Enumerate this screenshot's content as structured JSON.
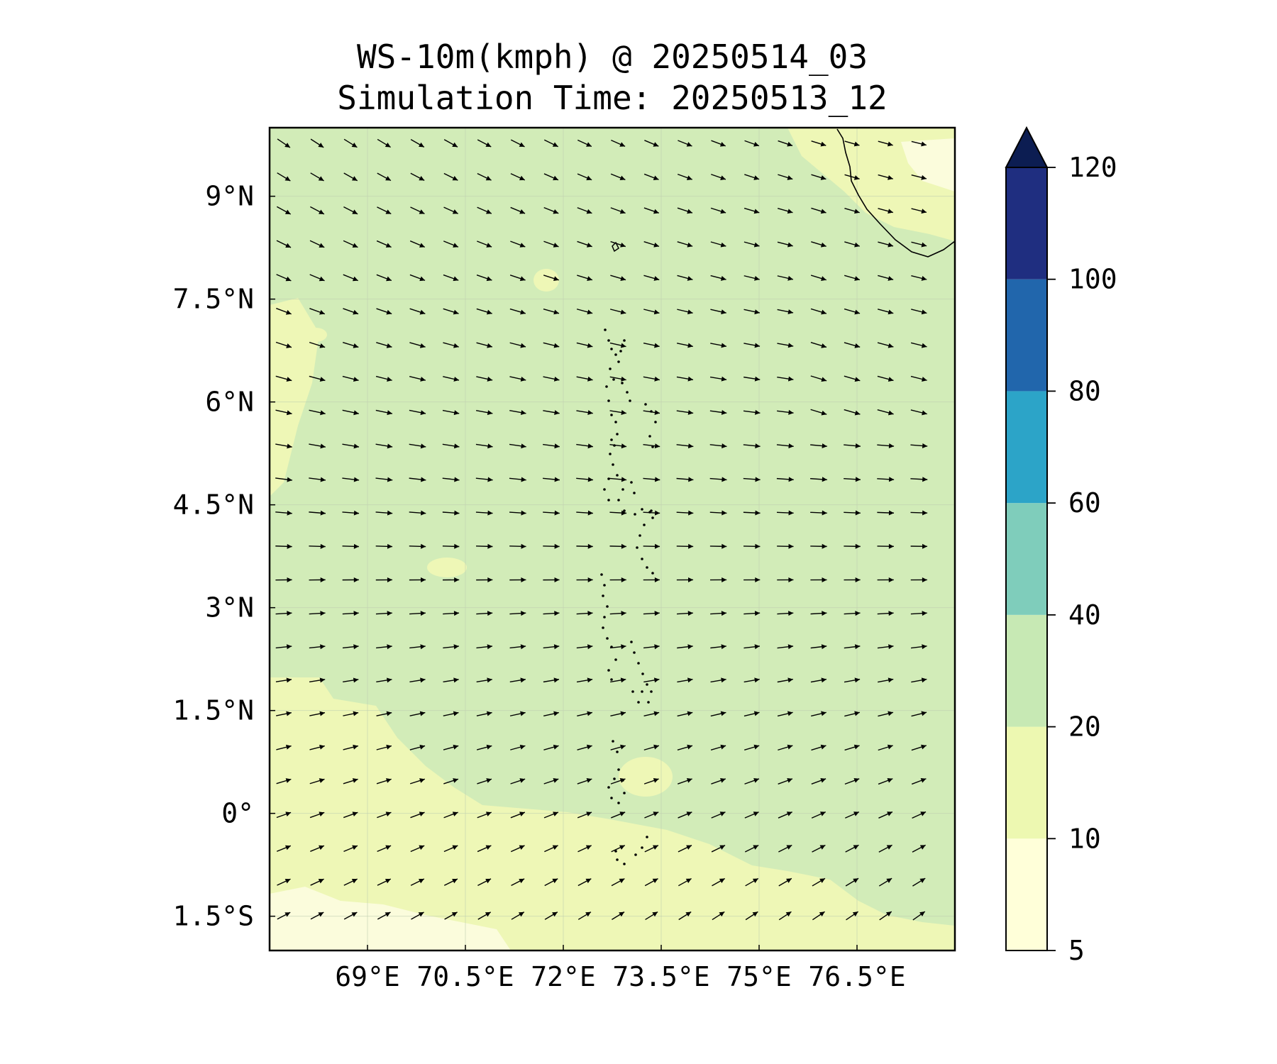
{
  "title": {
    "line1": "WS-10m(kmph) @ 20250514_03",
    "line2": "Simulation Time: 20250513_12"
  },
  "map": {
    "lon_range": [
      67.5,
      78.0
    ],
    "lat_range": [
      -2.0,
      10.0
    ],
    "x_ticks": [
      {
        "value": 69.0,
        "label": "69°E"
      },
      {
        "value": 70.5,
        "label": "70.5°E"
      },
      {
        "value": 72.0,
        "label": "72°E"
      },
      {
        "value": 73.5,
        "label": "73.5°E"
      },
      {
        "value": 75.0,
        "label": "75°E"
      },
      {
        "value": 76.5,
        "label": "76.5°E"
      }
    ],
    "y_ticks": [
      {
        "value": 9.0,
        "label": "9°N"
      },
      {
        "value": 7.5,
        "label": "7.5°N"
      },
      {
        "value": 6.0,
        "label": "6°N"
      },
      {
        "value": 4.5,
        "label": "4.5°N"
      },
      {
        "value": 3.0,
        "label": "3°N"
      },
      {
        "value": 1.5,
        "label": "1.5°N"
      },
      {
        "value": 0.0,
        "label": "0°"
      },
      {
        "value": -1.5,
        "label": "1.5°S"
      }
    ],
    "gridlines": true,
    "background_field": "wind speed 20-40 kmph over most of domain; 10-20 kmph in south-west and far north-east",
    "features": [
      "west coast of India (top-right)",
      "Maldives / Lakshadweep island chain (center)"
    ],
    "wind_flow": "north-westerly in north, westerly in center, south-westerly in south-east"
  },
  "colorbar": {
    "levels": [
      5,
      10,
      20,
      40,
      60,
      80,
      100,
      120
    ],
    "labels": [
      "5",
      "10",
      "20",
      "40",
      "60",
      "80",
      "100",
      "120"
    ],
    "colors": [
      "#ffffd9",
      "#edf8b1",
      "#c7e9b4",
      "#7fcdbb",
      "#2ca4c8",
      "#2166ac",
      "#1f2e80",
      "#0c1d52"
    ],
    "extend": "max"
  }
}
